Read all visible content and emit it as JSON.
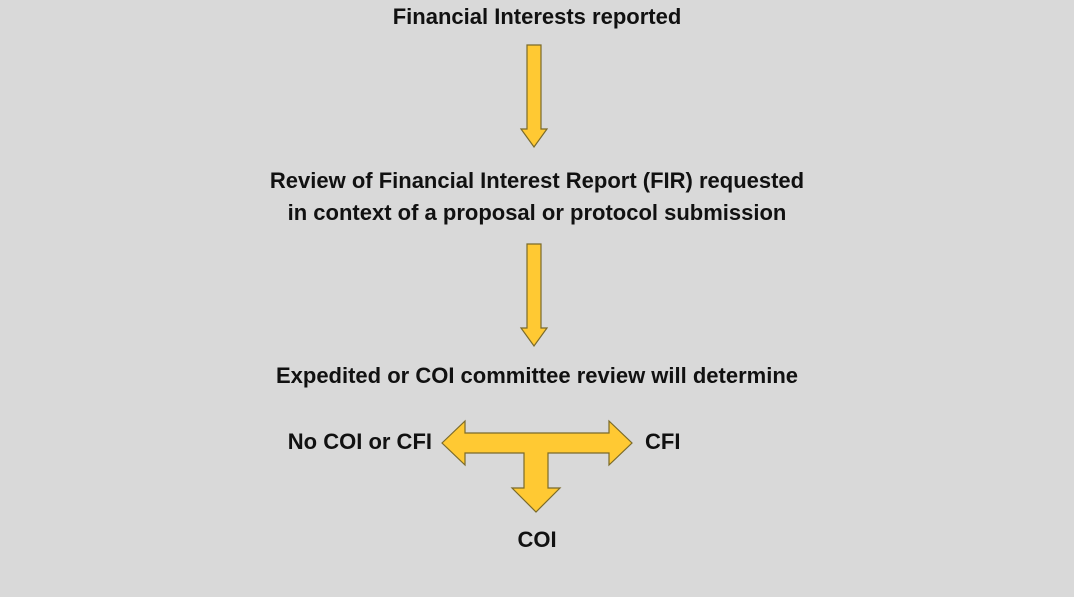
{
  "title": "Financial Interests reported",
  "review": {
    "line1": "Review of Financial Interest Report (FIR) requested",
    "line2": "in context of a proposal or protocol submission"
  },
  "determine": "Expedited or COI committee review will determine",
  "outcomes": {
    "left": "No COI or CFI",
    "right": "CFI",
    "bottom": "COI"
  },
  "colors": {
    "background": "#d9d9d9",
    "arrow_fill": "#ffc933",
    "arrow_stroke": "#7a6a2a",
    "text": "#111111"
  }
}
